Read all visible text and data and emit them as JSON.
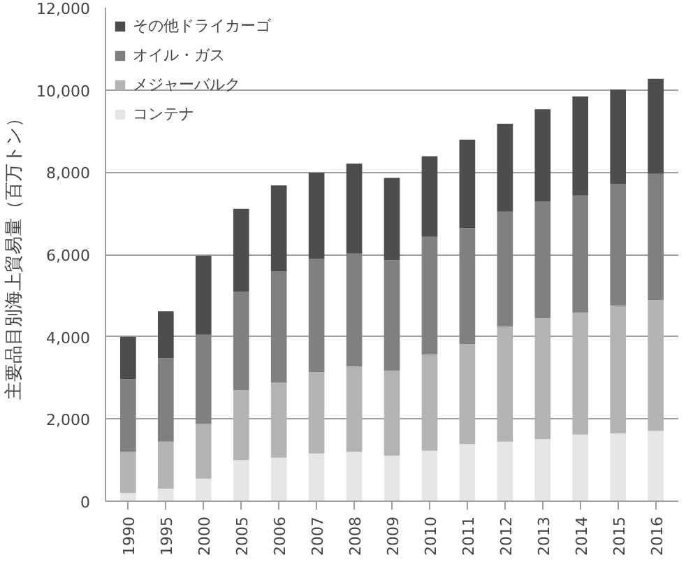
{
  "chart_data": {
    "type": "bar",
    "stacked": true,
    "ylabel": "主要品目別海上貿易量（百万トン）",
    "categories": [
      "1990",
      "1995",
      "2000",
      "2005",
      "2006",
      "2007",
      "2008",
      "2009",
      "2010",
      "2011",
      "2012",
      "2013",
      "2014",
      "2015",
      "2016"
    ],
    "series": [
      {
        "name": "コンテナ",
        "color": "#e6e6e6",
        "values": [
          200,
          300,
          550,
          1000,
          1060,
          1160,
          1200,
          1110,
          1230,
          1390,
          1450,
          1510,
          1620,
          1650,
          1710
        ]
      },
      {
        "name": "メジャーバルク",
        "color": "#b3b3b3",
        "values": [
          1000,
          1150,
          1330,
          1700,
          1820,
          1980,
          2080,
          2060,
          2340,
          2430,
          2800,
          2940,
          2970,
          3110,
          3180
        ]
      },
      {
        "name": "オイル・ガス",
        "color": "#808080",
        "values": [
          1770,
          2030,
          2170,
          2400,
          2710,
          2760,
          2740,
          2690,
          2860,
          2820,
          2790,
          2840,
          2840,
          2950,
          3070
        ]
      },
      {
        "name": "その他ドライカーゴ",
        "color": "#4d4d4d",
        "values": [
          1030,
          1140,
          1920,
          2010,
          2090,
          2090,
          2190,
          2000,
          1960,
          2150,
          2140,
          2240,
          2410,
          2300,
          2310
        ]
      }
    ],
    "ylim": [
      0,
      12000
    ],
    "yticks": [
      {
        "value": 0,
        "label": "0"
      },
      {
        "value": 2000,
        "label": "2,000"
      },
      {
        "value": 4000,
        "label": "4,000"
      },
      {
        "value": 6000,
        "label": "6,000"
      },
      {
        "value": 8000,
        "label": "8,000"
      },
      {
        "value": 10000,
        "label": "10,000"
      },
      {
        "value": 12000,
        "label": "12,000"
      }
    ],
    "grid": "y",
    "legend": "top left"
  }
}
